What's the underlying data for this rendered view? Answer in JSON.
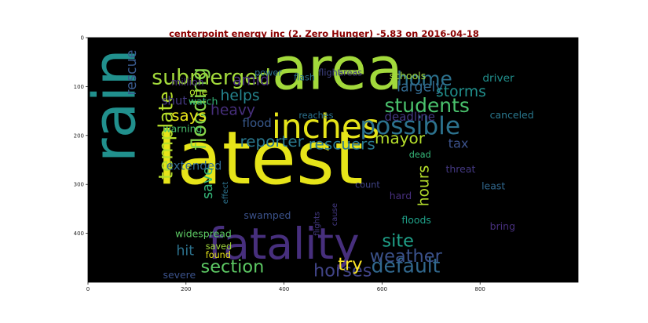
{
  "chart_data": {
    "type": "wordcloud",
    "title": "centerpoint energy inc (2. Zero Hunger) -5.83 on 2016-04-18",
    "xlabel": "",
    "ylabel": "",
    "xlim": [
      0,
      1000
    ],
    "ylim": [
      500,
      0
    ],
    "x_ticks": [
      0,
      200,
      400,
      600,
      800
    ],
    "y_ticks": [
      0,
      100,
      200,
      300,
      400
    ],
    "background": "#000000",
    "grid": false,
    "words": [
      {
        "text": "latest",
        "x": 140,
        "y": 298,
        "size": 150,
        "color": "#e6e419",
        "rotate": 0
      },
      {
        "text": "rain",
        "x": 95,
        "y": 255,
        "size": 120,
        "color": "#21908d",
        "rotate": -90
      },
      {
        "text": "area",
        "x": 375,
        "y": 105,
        "size": 120,
        "color": "#a2d93b",
        "rotate": 0
      },
      {
        "text": "fatality",
        "x": 245,
        "y": 452,
        "size": 88,
        "color": "#472f7d",
        "rotate": 0
      },
      {
        "text": "inches",
        "x": 375,
        "y": 205,
        "size": 68,
        "color": "#e6e419",
        "rotate": 0
      },
      {
        "text": "possible",
        "x": 555,
        "y": 197,
        "size": 50,
        "color": "#2c728e",
        "rotate": 0
      },
      {
        "text": "submerged",
        "x": 130,
        "y": 95,
        "size": 43,
        "color": "#a2d93b",
        "rotate": 0
      },
      {
        "text": "flooding",
        "x": 240,
        "y": 230,
        "size": 42,
        "color": "#86d549",
        "rotate": -90
      },
      {
        "text": "template",
        "x": 172,
        "y": 290,
        "size": 40,
        "color": "#b5de2b",
        "rotate": -90
      },
      {
        "text": "home",
        "x": 630,
        "y": 98,
        "size": 40,
        "color": "#2c728e",
        "rotate": 0
      },
      {
        "text": "students",
        "x": 605,
        "y": 152,
        "size": 40,
        "color": "#4ac26d",
        "rotate": 0
      },
      {
        "text": "default",
        "x": 578,
        "y": 480,
        "size": 40,
        "color": "#31688e",
        "rotate": 0
      },
      {
        "text": "section",
        "x": 230,
        "y": 480,
        "size": 36,
        "color": "#5cc863",
        "rotate": 0
      },
      {
        "text": "weather",
        "x": 575,
        "y": 458,
        "size": 36,
        "color": "#3b528b",
        "rotate": 0
      },
      {
        "text": "site",
        "x": 600,
        "y": 427,
        "size": 36,
        "color": "#1fa088",
        "rotate": 0
      },
      {
        "text": "horses",
        "x": 460,
        "y": 488,
        "size": 36,
        "color": "#414487",
        "rotate": 0
      },
      {
        "text": "reporter",
        "x": 310,
        "y": 223,
        "size": 32,
        "color": "#2a788e",
        "rotate": 0
      },
      {
        "text": "rescuers",
        "x": 450,
        "y": 228,
        "size": 32,
        "color": "#2a788e",
        "rotate": 0
      },
      {
        "text": "mayor",
        "x": 585,
        "y": 216,
        "size": 32,
        "color": "#b5de2b",
        "rotate": 0
      },
      {
        "text": "try",
        "x": 510,
        "y": 475,
        "size": 36,
        "color": "#fde725",
        "rotate": 0
      },
      {
        "text": "says",
        "x": 170,
        "y": 170,
        "size": 32,
        "color": "#e6e419",
        "rotate": 0
      },
      {
        "text": "heavy",
        "x": 250,
        "y": 158,
        "size": 30,
        "color": "#472f7d",
        "rotate": 0
      },
      {
        "text": "helps",
        "x": 270,
        "y": 128,
        "size": 30,
        "color": "#25848e",
        "rotate": 0
      },
      {
        "text": "amid",
        "x": 295,
        "y": 97,
        "size": 30,
        "color": "#472f7d",
        "rotate": 0
      },
      {
        "text": "hours",
        "x": 695,
        "y": 345,
        "size": 30,
        "color": "#b5de2b",
        "rotate": -90
      },
      {
        "text": "largely",
        "x": 630,
        "y": 110,
        "size": 28,
        "color": "#31688e",
        "rotate": 0
      },
      {
        "text": "storms",
        "x": 710,
        "y": 120,
        "size": 30,
        "color": "#21908d",
        "rotate": 0
      },
      {
        "text": "save",
        "x": 253,
        "y": 330,
        "size": 28,
        "color": "#35b779",
        "rotate": -90
      },
      {
        "text": "rescue",
        "x": 98,
        "y": 118,
        "size": 28,
        "color": "#38598c",
        "rotate": -90
      },
      {
        "text": "hit",
        "x": 180,
        "y": 445,
        "size": 28,
        "color": "#2c728e",
        "rotate": 0
      },
      {
        "text": "tax",
        "x": 735,
        "y": 225,
        "size": 26,
        "color": "#3b528b",
        "rotate": 0
      },
      {
        "text": "shut",
        "x": 150,
        "y": 137,
        "size": 24,
        "color": "#443983",
        "rotate": 0
      },
      {
        "text": "deadline",
        "x": 605,
        "y": 170,
        "size": 24,
        "color": "#443983",
        "rotate": 0
      },
      {
        "text": "flood",
        "x": 315,
        "y": 183,
        "size": 24,
        "color": "#38598c",
        "rotate": 0
      },
      {
        "text": "extended",
        "x": 160,
        "y": 270,
        "size": 24,
        "color": "#31688e",
        "rotate": 0
      },
      {
        "text": "driver",
        "x": 805,
        "y": 90,
        "size": 22,
        "color": "#21908d",
        "rotate": 0
      },
      {
        "text": "canceled",
        "x": 820,
        "y": 165,
        "size": 20,
        "color": "#2a788e",
        "rotate": 0
      },
      {
        "text": "warning",
        "x": 153,
        "y": 193,
        "size": 20,
        "color": "#4ac26d",
        "rotate": 0
      },
      {
        "text": "watch",
        "x": 205,
        "y": 137,
        "size": 20,
        "color": "#35b779",
        "rotate": 0
      },
      {
        "text": "one",
        "x": 207,
        "y": 118,
        "size": 20,
        "color": "#b5de2b",
        "rotate": 0
      },
      {
        "text": "million",
        "x": 170,
        "y": 98,
        "size": 20,
        "color": "#472f7d",
        "rotate": 0
      },
      {
        "text": "power",
        "x": 340,
        "y": 78,
        "size": 18,
        "color": "#2c728e",
        "rotate": 0
      },
      {
        "text": "flash",
        "x": 420,
        "y": 87,
        "size": 18,
        "color": "#2c728e",
        "rotate": 0
      },
      {
        "text": "flight",
        "x": 470,
        "y": 78,
        "size": 18,
        "color": "#414487",
        "rotate": 0
      },
      {
        "text": "areas",
        "x": 510,
        "y": 78,
        "size": 18,
        "color": "#443983",
        "rotate": 0
      },
      {
        "text": "schools",
        "x": 615,
        "y": 85,
        "size": 20,
        "color": "#a2d93b",
        "rotate": 0
      },
      {
        "text": "reaches",
        "x": 430,
        "y": 165,
        "size": 18,
        "color": "#2c728e",
        "rotate": 0
      },
      {
        "text": "dead",
        "x": 655,
        "y": 245,
        "size": 18,
        "color": "#35b779",
        "rotate": 0
      },
      {
        "text": "threat",
        "x": 730,
        "y": 276,
        "size": 20,
        "color": "#443983",
        "rotate": 0
      },
      {
        "text": "count",
        "x": 545,
        "y": 307,
        "size": 18,
        "color": "#414487",
        "rotate": 0
      },
      {
        "text": "least",
        "x": 803,
        "y": 310,
        "size": 20,
        "color": "#31688e",
        "rotate": 0
      },
      {
        "text": "hard",
        "x": 615,
        "y": 330,
        "size": 20,
        "color": "#472f7d",
        "rotate": 0
      },
      {
        "text": "effect",
        "x": 285,
        "y": 340,
        "size": 16,
        "color": "#2c728e",
        "rotate": -90
      },
      {
        "text": "flights",
        "x": 472,
        "y": 405,
        "size": 16,
        "color": "#443983",
        "rotate": -90
      },
      {
        "text": "cause",
        "x": 508,
        "y": 385,
        "size": 16,
        "color": "#443983",
        "rotate": -90
      },
      {
        "text": "swamped",
        "x": 318,
        "y": 370,
        "size": 20,
        "color": "#3b528b",
        "rotate": 0
      },
      {
        "text": "widespread",
        "x": 178,
        "y": 408,
        "size": 20,
        "color": "#5cc863",
        "rotate": 0
      },
      {
        "text": "floods",
        "x": 640,
        "y": 380,
        "size": 20,
        "color": "#1fa088",
        "rotate": 0
      },
      {
        "text": "bring",
        "x": 820,
        "y": 393,
        "size": 20,
        "color": "#472f7d",
        "rotate": 0
      },
      {
        "text": "saved",
        "x": 240,
        "y": 433,
        "size": 18,
        "color": "#a2d93b",
        "rotate": 0
      },
      {
        "text": "found",
        "x": 240,
        "y": 450,
        "size": 18,
        "color": "#e6e419",
        "rotate": 0
      },
      {
        "text": "severe",
        "x": 153,
        "y": 492,
        "size": 20,
        "color": "#3b528b",
        "rotate": 0
      }
    ]
  }
}
